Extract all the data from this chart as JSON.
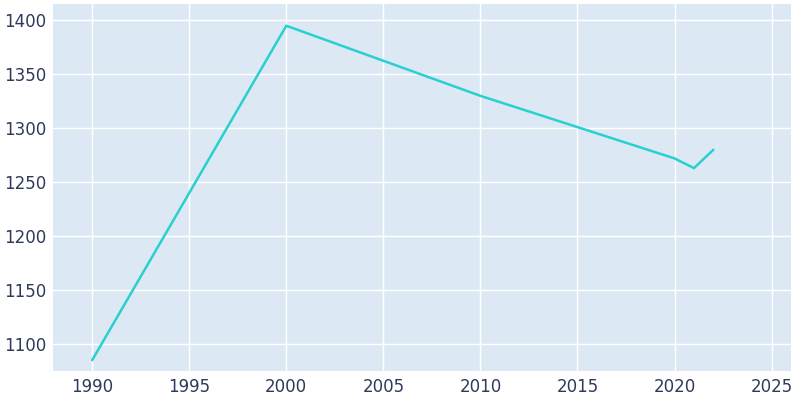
{
  "years": [
    1990,
    2000,
    2010,
    2020,
    2021,
    2022
  ],
  "population": [
    1085,
    1395,
    1330,
    1272,
    1263,
    1280
  ],
  "line_color": "#2acfcf",
  "plot_background_color": "#dce9f5",
  "figure_background_color": "#ffffff",
  "grid_color": "#ffffff",
  "tick_label_color": "#2d3a5a",
  "xlim": [
    1988,
    2026
  ],
  "ylim": [
    1075,
    1415
  ],
  "xticks": [
    1990,
    1995,
    2000,
    2005,
    2010,
    2015,
    2020,
    2025
  ],
  "yticks": [
    1100,
    1150,
    1200,
    1250,
    1300,
    1350,
    1400
  ],
  "line_width": 1.8,
  "tick_fontsize": 12
}
